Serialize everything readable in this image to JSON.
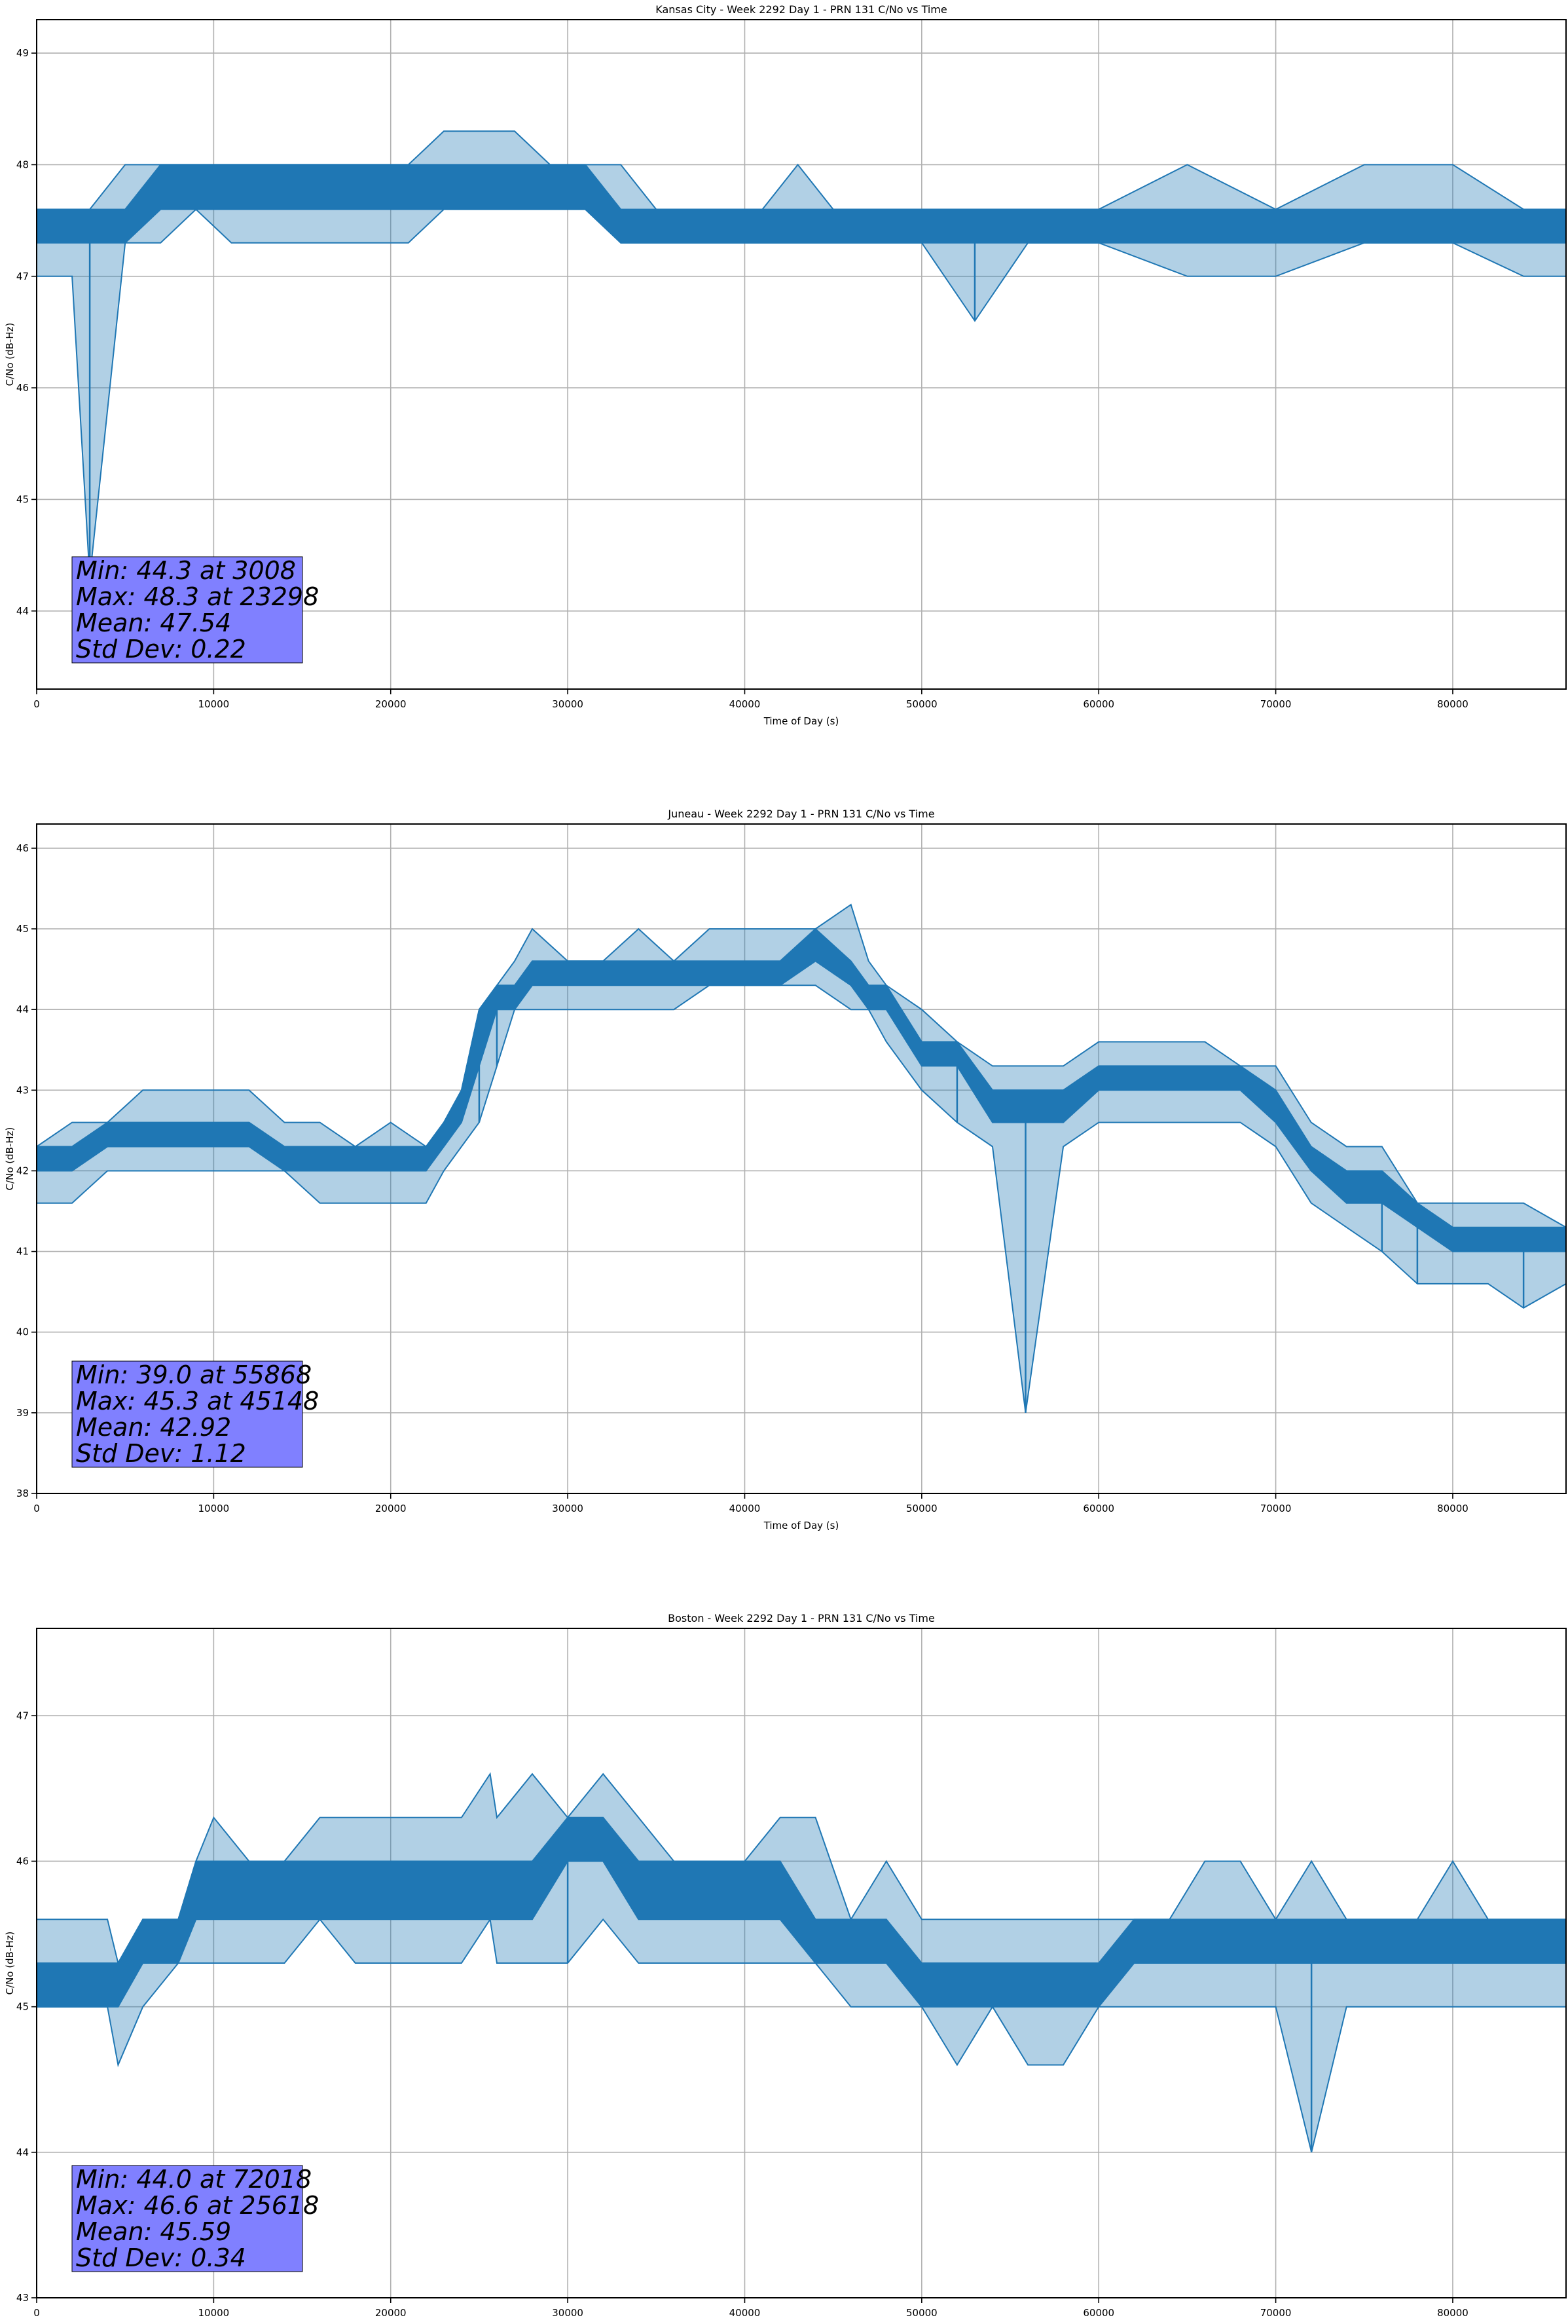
{
  "figure": {
    "line_color": "#1f77b4",
    "grid_color": "#b0b0b0",
    "stats_box_color": "#8080ff"
  },
  "chart_data": [
    {
      "type": "line",
      "title": "Kansas City - Week 2292 Day 1 - PRN 131 C/No vs Time",
      "xlabel": "Time of Day (s)",
      "ylabel": "C/No (dB-Hz)",
      "xlim": [
        0,
        86400
      ],
      "ylim": [
        43.3,
        49.3
      ],
      "xticks": [
        0,
        10000,
        20000,
        30000,
        40000,
        50000,
        60000,
        70000,
        80000
      ],
      "yticks": [
        44,
        45,
        46,
        47,
        48,
        49
      ],
      "grid": true,
      "series": [
        {
          "x": [
            0,
            1000,
            2000,
            3000,
            5000,
            7000,
            9000,
            11000,
            13000,
            15000,
            17000,
            19000,
            21000,
            23000,
            25000,
            27000,
            29000,
            31000,
            33000,
            35000,
            37000,
            39000,
            41000,
            43000,
            45000,
            47000,
            50000,
            53000,
            56000,
            60000,
            65000,
            70000,
            75000,
            80000,
            84000,
            86400
          ],
          "low": [
            47.0,
            47.0,
            47.0,
            44.3,
            47.3,
            47.3,
            47.6,
            47.3,
            47.3,
            47.3,
            47.3,
            47.3,
            47.3,
            47.6,
            47.6,
            47.6,
            47.6,
            47.6,
            47.3,
            47.3,
            47.3,
            47.3,
            47.3,
            47.3,
            47.3,
            47.3,
            47.3,
            46.6,
            47.3,
            47.3,
            47.0,
            47.0,
            47.3,
            47.3,
            47.0,
            47.0
          ],
          "high": [
            47.6,
            47.6,
            47.6,
            47.6,
            48.0,
            48.0,
            48.0,
            48.0,
            48.0,
            48.0,
            48.0,
            48.0,
            48.0,
            48.3,
            48.3,
            48.3,
            48.0,
            48.0,
            48.0,
            47.6,
            47.6,
            47.6,
            47.6,
            48.0,
            47.6,
            47.6,
            47.6,
            47.6,
            47.6,
            47.6,
            48.0,
            47.6,
            48.0,
            48.0,
            47.6,
            47.6
          ],
          "band_low": [
            47.3,
            47.3,
            47.3,
            47.3,
            47.3,
            47.6,
            47.6,
            47.6,
            47.6,
            47.6,
            47.6,
            47.6,
            47.6,
            47.6,
            47.6,
            47.6,
            47.6,
            47.6,
            47.3,
            47.3,
            47.3,
            47.3,
            47.3,
            47.3,
            47.3,
            47.3,
            47.3,
            47.3,
            47.3,
            47.3,
            47.3,
            47.3,
            47.3,
            47.3,
            47.3,
            47.3
          ],
          "band_high": [
            47.6,
            47.6,
            47.6,
            47.6,
            47.6,
            48.0,
            48.0,
            48.0,
            48.0,
            48.0,
            48.0,
            48.0,
            48.0,
            48.0,
            48.0,
            48.0,
            48.0,
            48.0,
            47.6,
            47.6,
            47.6,
            47.6,
            47.6,
            47.6,
            47.6,
            47.6,
            47.6,
            47.6,
            47.6,
            47.6,
            47.6,
            47.6,
            47.6,
            47.6,
            47.6,
            47.6
          ]
        }
      ],
      "stats": [
        "Min: 44.3 at 3008",
        "Max: 48.3 at 23298",
        "Mean: 47.54",
        "Std Dev: 0.22"
      ]
    },
    {
      "type": "line",
      "title": "Juneau - Week 2292 Day 1 - PRN 131 C/No vs Time",
      "xlabel": "Time of Day (s)",
      "ylabel": "C/No (dB-Hz)",
      "xlim": [
        0,
        86400
      ],
      "ylim": [
        38.0,
        46.3
      ],
      "xticks": [
        0,
        10000,
        20000,
        30000,
        40000,
        50000,
        60000,
        70000,
        80000
      ],
      "yticks": [
        38,
        39,
        40,
        41,
        42,
        43,
        44,
        45,
        46
      ],
      "grid": true,
      "series": [
        {
          "x": [
            0,
            2000,
            4000,
            6000,
            8000,
            10000,
            12000,
            14000,
            16000,
            18000,
            20000,
            22000,
            23000,
            24000,
            25000,
            26000,
            27000,
            28000,
            30000,
            32000,
            34000,
            36000,
            38000,
            40000,
            42000,
            44000,
            46000,
            47000,
            48000,
            50000,
            52000,
            54000,
            55868,
            58000,
            60000,
            62000,
            64000,
            66000,
            68000,
            70000,
            72000,
            74000,
            76000,
            78000,
            80000,
            82000,
            84000,
            86400
          ],
          "low": [
            41.6,
            41.6,
            42.0,
            42.0,
            42.0,
            42.0,
            42.0,
            42.0,
            41.6,
            41.6,
            41.6,
            41.6,
            42.0,
            42.3,
            42.6,
            43.3,
            44.0,
            44.0,
            44.0,
            44.0,
            44.0,
            44.0,
            44.3,
            44.3,
            44.3,
            44.3,
            44.0,
            44.0,
            43.6,
            43.0,
            42.6,
            42.3,
            39.0,
            42.3,
            42.6,
            42.6,
            42.6,
            42.6,
            42.6,
            42.3,
            41.6,
            41.3,
            41.0,
            40.6,
            40.6,
            40.6,
            40.3,
            40.6
          ],
          "high": [
            42.3,
            42.6,
            42.6,
            43.0,
            43.0,
            43.0,
            43.0,
            42.6,
            42.6,
            42.3,
            42.6,
            42.3,
            42.6,
            43.0,
            44.0,
            44.3,
            44.6,
            45.0,
            44.6,
            44.6,
            45.0,
            44.6,
            45.0,
            45.0,
            45.0,
            45.0,
            45.3,
            44.6,
            44.3,
            44.0,
            43.6,
            43.3,
            43.3,
            43.3,
            43.6,
            43.6,
            43.6,
            43.6,
            43.3,
            43.3,
            42.6,
            42.3,
            42.3,
            41.6,
            41.6,
            41.6,
            41.6,
            41.3
          ],
          "band_low": [
            42.0,
            42.0,
            42.3,
            42.3,
            42.3,
            42.3,
            42.3,
            42.0,
            42.0,
            42.0,
            42.0,
            42.0,
            42.3,
            42.6,
            43.3,
            44.0,
            44.0,
            44.3,
            44.3,
            44.3,
            44.3,
            44.3,
            44.3,
            44.3,
            44.3,
            44.6,
            44.3,
            44.0,
            44.0,
            43.3,
            43.3,
            42.6,
            42.6,
            42.6,
            43.0,
            43.0,
            43.0,
            43.0,
            43.0,
            42.6,
            42.0,
            41.6,
            41.6,
            41.3,
            41.0,
            41.0,
            41.0,
            41.0
          ],
          "band_high": [
            42.3,
            42.3,
            42.6,
            42.6,
            42.6,
            42.6,
            42.6,
            42.3,
            42.3,
            42.3,
            42.3,
            42.3,
            42.6,
            43.0,
            44.0,
            44.3,
            44.3,
            44.6,
            44.6,
            44.6,
            44.6,
            44.6,
            44.6,
            44.6,
            44.6,
            45.0,
            44.6,
            44.3,
            44.3,
            43.6,
            43.6,
            43.0,
            43.0,
            43.0,
            43.3,
            43.3,
            43.3,
            43.3,
            43.3,
            43.0,
            42.3,
            42.0,
            42.0,
            41.6,
            41.3,
            41.3,
            41.3,
            41.3
          ]
        }
      ],
      "stats": [
        "Min: 39.0 at 55868",
        "Max: 45.3 at 45148",
        "Mean: 42.92",
        "Std Dev: 1.12"
      ]
    },
    {
      "type": "line",
      "title": "Boston - Week 2292 Day 1 - PRN 131 C/No vs Time",
      "xlabel": "Time of Day (s)",
      "ylabel": "C/No (dB-Hz)",
      "xlim": [
        0,
        86400
      ],
      "ylim": [
        43.0,
        47.6
      ],
      "xticks": [
        0,
        10000,
        20000,
        30000,
        40000,
        50000,
        60000,
        70000,
        80000
      ],
      "yticks": [
        43,
        44,
        45,
        46,
        47
      ],
      "grid": true,
      "series": [
        {
          "x": [
            0,
            2000,
            4000,
            4600,
            6000,
            8000,
            9000,
            10000,
            12000,
            14000,
            16000,
            18000,
            20000,
            22000,
            24000,
            25618,
            26000,
            28000,
            30000,
            32000,
            34000,
            36000,
            38000,
            40000,
            42000,
            44000,
            46000,
            48000,
            50000,
            52000,
            54000,
            56000,
            58000,
            60000,
            62000,
            64000,
            66000,
            68000,
            70000,
            72018,
            74000,
            76000,
            78000,
            80000,
            82000,
            84000,
            86400
          ],
          "low": [
            45.0,
            45.0,
            45.0,
            44.6,
            45.0,
            45.3,
            45.3,
            45.3,
            45.3,
            45.3,
            45.6,
            45.3,
            45.3,
            45.3,
            45.3,
            45.6,
            45.3,
            45.3,
            45.3,
            45.6,
            45.3,
            45.3,
            45.3,
            45.3,
            45.3,
            45.3,
            45.0,
            45.0,
            45.0,
            44.6,
            45.0,
            44.6,
            44.6,
            45.0,
            45.0,
            45.0,
            45.0,
            45.0,
            45.0,
            44.0,
            45.0,
            45.0,
            45.0,
            45.0,
            45.0,
            45.0,
            45.0
          ],
          "high": [
            45.6,
            45.6,
            45.6,
            45.3,
            45.6,
            45.6,
            46.0,
            46.3,
            46.0,
            46.0,
            46.3,
            46.3,
            46.3,
            46.3,
            46.3,
            46.6,
            46.3,
            46.6,
            46.3,
            46.6,
            46.3,
            46.0,
            46.0,
            46.0,
            46.3,
            46.3,
            45.6,
            46.0,
            45.6,
            45.6,
            45.6,
            45.6,
            45.6,
            45.6,
            45.6,
            45.6,
            46.0,
            46.0,
            45.6,
            46.0,
            45.6,
            45.6,
            45.6,
            46.0,
            45.6,
            45.6,
            45.6
          ],
          "band_low": [
            45.0,
            45.0,
            45.0,
            45.0,
            45.3,
            45.3,
            45.6,
            45.6,
            45.6,
            45.6,
            45.6,
            45.6,
            45.6,
            45.6,
            45.6,
            45.6,
            45.6,
            45.6,
            46.0,
            46.0,
            45.6,
            45.6,
            45.6,
            45.6,
            45.6,
            45.3,
            45.3,
            45.3,
            45.0,
            45.0,
            45.0,
            45.0,
            45.0,
            45.0,
            45.3,
            45.3,
            45.3,
            45.3,
            45.3,
            45.3,
            45.3,
            45.3,
            45.3,
            45.3,
            45.3,
            45.3,
            45.3
          ],
          "band_high": [
            45.3,
            45.3,
            45.3,
            45.3,
            45.6,
            45.6,
            46.0,
            46.0,
            46.0,
            46.0,
            46.0,
            46.0,
            46.0,
            46.0,
            46.0,
            46.0,
            46.0,
            46.0,
            46.3,
            46.3,
            46.0,
            46.0,
            46.0,
            46.0,
            46.0,
            45.6,
            45.6,
            45.6,
            45.3,
            45.3,
            45.3,
            45.3,
            45.3,
            45.3,
            45.6,
            45.6,
            45.6,
            45.6,
            45.6,
            45.6,
            45.6,
            45.6,
            45.6,
            45.6,
            45.6,
            45.6,
            45.6
          ]
        }
      ],
      "stats": [
        "Min: 44.0 at 72018",
        "Max: 46.6 at 25618",
        "Mean: 45.59",
        "Std Dev: 0.34"
      ]
    }
  ]
}
